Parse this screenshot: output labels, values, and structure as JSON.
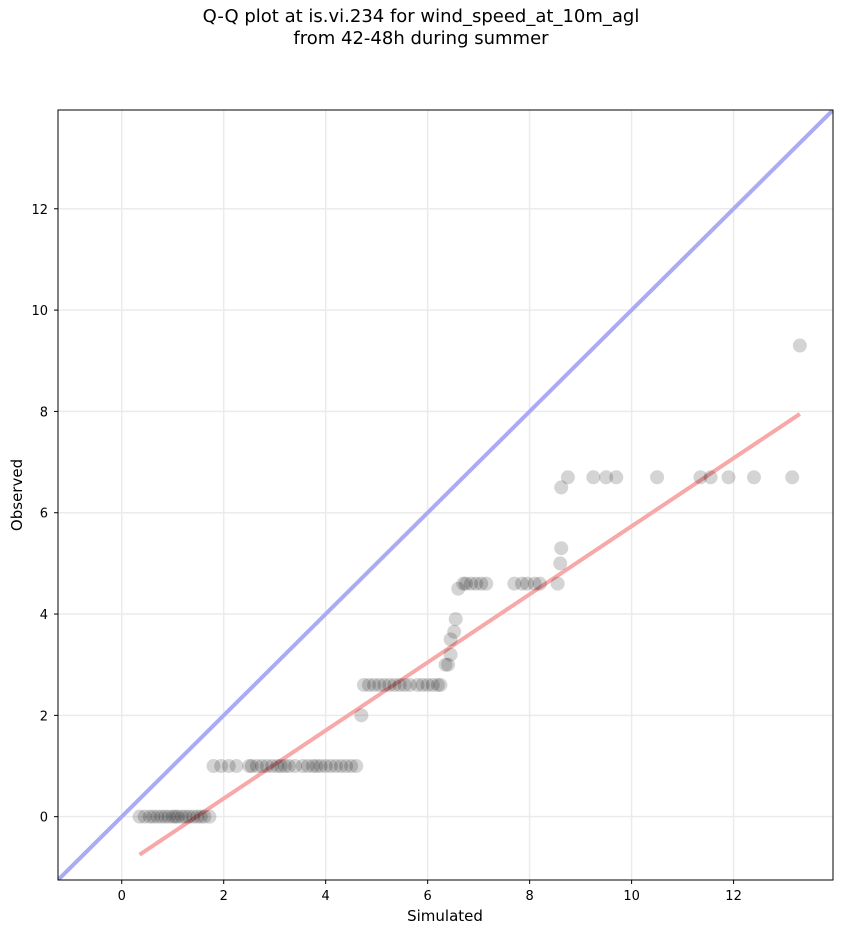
{
  "title_line1": "Q-Q plot at is.vi.234 for wind_speed_at_10m_agl",
  "title_line2": "from 42-48h during summer",
  "chart_data": {
    "type": "scatter",
    "title": "Q-Q plot at is.vi.234 for wind_speed_at_10m_agl\nfrom 42-48h during summer",
    "xlabel": "Simulated",
    "ylabel": "Observed",
    "xlim": [
      -1.25,
      13.95
    ],
    "ylim": [
      -1.25,
      13.95
    ],
    "xticks": [
      0,
      2,
      4,
      6,
      8,
      10,
      12
    ],
    "yticks": [
      0,
      2,
      4,
      6,
      8,
      10,
      12
    ],
    "grid": true,
    "colors": {
      "points": "#000000",
      "identity_line": "#aaaaf5",
      "fit_line": "#f8a8a8"
    },
    "identity_line": {
      "x": [
        -1.25,
        13.95
      ],
      "y": [
        -1.25,
        13.95
      ]
    },
    "fit_line": {
      "x": [
        0.35,
        13.3
      ],
      "y": [
        -0.75,
        7.95
      ]
    },
    "points": [
      [
        0.35,
        0
      ],
      [
        0.45,
        0
      ],
      [
        0.55,
        0
      ],
      [
        0.62,
        0
      ],
      [
        0.7,
        0
      ],
      [
        0.78,
        0
      ],
      [
        0.85,
        0
      ],
      [
        0.92,
        0
      ],
      [
        1.0,
        0
      ],
      [
        1.05,
        0
      ],
      [
        1.1,
        0
      ],
      [
        1.18,
        0
      ],
      [
        1.25,
        0
      ],
      [
        1.32,
        0
      ],
      [
        1.4,
        0
      ],
      [
        1.48,
        0
      ],
      [
        1.55,
        0
      ],
      [
        1.62,
        0
      ],
      [
        1.72,
        0
      ],
      [
        1.8,
        1
      ],
      [
        1.95,
        1
      ],
      [
        2.1,
        1
      ],
      [
        2.25,
        1
      ],
      [
        2.5,
        1
      ],
      [
        2.55,
        1
      ],
      [
        2.65,
        1
      ],
      [
        2.75,
        1
      ],
      [
        2.85,
        1
      ],
      [
        2.95,
        1
      ],
      [
        3.05,
        1
      ],
      [
        3.12,
        1
      ],
      [
        3.2,
        1
      ],
      [
        3.28,
        1
      ],
      [
        3.4,
        1
      ],
      [
        3.55,
        1
      ],
      [
        3.65,
        1
      ],
      [
        3.75,
        1
      ],
      [
        3.82,
        1
      ],
      [
        3.9,
        1
      ],
      [
        4.0,
        1
      ],
      [
        4.1,
        1
      ],
      [
        4.2,
        1
      ],
      [
        4.3,
        1
      ],
      [
        4.4,
        1
      ],
      [
        4.5,
        1
      ],
      [
        4.6,
        1
      ],
      [
        4.7,
        2.0
      ],
      [
        4.75,
        2.6
      ],
      [
        4.85,
        2.6
      ],
      [
        4.95,
        2.6
      ],
      [
        5.05,
        2.6
      ],
      [
        5.15,
        2.6
      ],
      [
        5.25,
        2.6
      ],
      [
        5.35,
        2.6
      ],
      [
        5.45,
        2.6
      ],
      [
        5.55,
        2.6
      ],
      [
        5.65,
        2.6
      ],
      [
        5.8,
        2.6
      ],
      [
        5.9,
        2.6
      ],
      [
        6.0,
        2.6
      ],
      [
        6.1,
        2.6
      ],
      [
        6.2,
        2.6
      ],
      [
        6.25,
        2.6
      ],
      [
        6.35,
        3.0
      ],
      [
        6.4,
        3.0
      ],
      [
        6.45,
        3.2
      ],
      [
        6.45,
        3.5
      ],
      [
        6.52,
        3.65
      ],
      [
        6.55,
        3.9
      ],
      [
        6.6,
        4.5
      ],
      [
        6.7,
        4.6
      ],
      [
        6.75,
        4.6
      ],
      [
        6.85,
        4.6
      ],
      [
        6.95,
        4.6
      ],
      [
        7.05,
        4.6
      ],
      [
        7.15,
        4.6
      ],
      [
        7.7,
        4.6
      ],
      [
        7.85,
        4.6
      ],
      [
        7.95,
        4.6
      ],
      [
        8.1,
        4.6
      ],
      [
        8.2,
        4.6
      ],
      [
        8.55,
        4.6
      ],
      [
        8.6,
        5.0
      ],
      [
        8.62,
        5.3
      ],
      [
        8.62,
        6.5
      ],
      [
        8.75,
        6.7
      ],
      [
        9.25,
        6.7
      ],
      [
        9.5,
        6.7
      ],
      [
        9.7,
        6.7
      ],
      [
        10.5,
        6.7
      ],
      [
        11.35,
        6.7
      ],
      [
        11.55,
        6.7
      ],
      [
        11.9,
        6.7
      ],
      [
        12.4,
        6.7
      ],
      [
        13.15,
        6.7
      ],
      [
        13.3,
        9.3
      ]
    ]
  }
}
